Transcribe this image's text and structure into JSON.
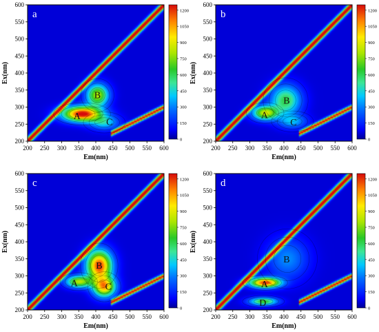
{
  "chart_data": [
    {
      "type": "heatmap",
      "panel_label": "a",
      "xlabel": "Em(nm)",
      "ylabel": "Ex(nm)",
      "xlim": [
        200,
        600
      ],
      "ylim": [
        200,
        600
      ],
      "x_ticks": [
        "200",
        "250",
        "300",
        "350",
        "400",
        "450",
        "500",
        "550",
        "600"
      ],
      "y_ticks": [
        "200",
        "250",
        "300",
        "350",
        "400",
        "450",
        "500",
        "550",
        "600"
      ],
      "colorbar_ticks": [
        "0",
        "150",
        "300",
        "450",
        "600",
        "750",
        "900",
        "1050",
        "1200"
      ],
      "colorbar_range": [
        0,
        1250
      ],
      "peaks": [
        {
          "label": "A",
          "em": 360,
          "ex": 280,
          "intensity": 1250,
          "sem": 38,
          "sex": 15
        },
        {
          "label": "B",
          "em": 405,
          "ex": 335,
          "intensity": 760,
          "sem": 22,
          "sex": 22
        },
        {
          "label": "C",
          "em": 425,
          "ex": 255,
          "intensity": 380,
          "sem": 28,
          "sex": 14
        }
      ],
      "annotations": [
        {
          "text": "A",
          "em": 345,
          "ex": 275
        },
        {
          "text": "B",
          "em": 405,
          "ex": 336
        },
        {
          "text": "C",
          "em": 440,
          "ex": 258
        }
      ]
    },
    {
      "type": "heatmap",
      "panel_label": "b",
      "xlabel": "Em(nm)",
      "ylabel": "Ex(nm)",
      "xlim": [
        200,
        600
      ],
      "ylim": [
        200,
        600
      ],
      "x_ticks": [
        "200",
        "250",
        "300",
        "350",
        "400",
        "450",
        "500",
        "550",
        "600"
      ],
      "y_ticks": [
        "200",
        "250",
        "300",
        "350",
        "400",
        "450",
        "500",
        "550",
        "600"
      ],
      "colorbar_ticks": [
        "0",
        "150",
        "300",
        "450",
        "600",
        "750",
        "900",
        "1050",
        "1200"
      ],
      "colorbar_range": [
        0,
        1250
      ],
      "peaks": [
        {
          "label": "A",
          "em": 345,
          "ex": 283,
          "intensity": 800,
          "sem": 25,
          "sex": 14
        },
        {
          "label": "B",
          "em": 405,
          "ex": 320,
          "intensity": 560,
          "sem": 30,
          "sex": 30
        },
        {
          "label": "C",
          "em": 425,
          "ex": 258,
          "intensity": 300,
          "sem": 28,
          "sex": 14
        }
      ],
      "annotations": [
        {
          "text": "A",
          "em": 343,
          "ex": 278
        },
        {
          "text": "B",
          "em": 408,
          "ex": 320
        },
        {
          "text": "C",
          "em": 428,
          "ex": 257
        }
      ]
    },
    {
      "type": "heatmap",
      "panel_label": "c",
      "xlabel": "Em(nm)",
      "ylabel": "Ex(nm)",
      "xlim": [
        200,
        600
      ],
      "ylim": [
        200,
        600
      ],
      "x_ticks": [
        "200",
        "250",
        "300",
        "350",
        "400",
        "450",
        "500",
        "550",
        "600"
      ],
      "y_ticks": [
        "200",
        "250",
        "300",
        "350",
        "400",
        "450",
        "500",
        "550",
        "600"
      ],
      "colorbar_ticks": [
        "0",
        "150",
        "300",
        "450",
        "600",
        "750",
        "900",
        "1050",
        "1200"
      ],
      "colorbar_range": [
        0,
        1250
      ],
      "peaks": [
        {
          "label": "A",
          "em": 350,
          "ex": 283,
          "intensity": 760,
          "sem": 25,
          "sex": 12
        },
        {
          "label": "B",
          "em": 410,
          "ex": 330,
          "intensity": 1150,
          "sem": 25,
          "sex": 30
        },
        {
          "label": "C",
          "em": 425,
          "ex": 268,
          "intensity": 950,
          "sem": 22,
          "sex": 20
        }
      ],
      "annotations": [
        {
          "text": "A",
          "em": 337,
          "ex": 280
        },
        {
          "text": "B",
          "em": 410,
          "ex": 331
        },
        {
          "text": "C",
          "em": 437,
          "ex": 270
        }
      ]
    },
    {
      "type": "heatmap",
      "panel_label": "d",
      "xlabel": "Em(nm)",
      "ylabel": "Ex(nm)",
      "xlim": [
        200,
        600
      ],
      "ylim": [
        200,
        600
      ],
      "x_ticks": [
        "200",
        "250",
        "300",
        "350",
        "400",
        "450",
        "500",
        "550",
        "600"
      ],
      "y_ticks": [
        "200",
        "250",
        "300",
        "350",
        "400",
        "450",
        "500",
        "550",
        "600"
      ],
      "colorbar_ticks": [
        "0",
        "150",
        "300",
        "450",
        "600",
        "750",
        "900",
        "1050",
        "1200"
      ],
      "colorbar_range": [
        0,
        1250
      ],
      "peaks": [
        {
          "label": "A",
          "em": 345,
          "ex": 280,
          "intensity": 1150,
          "sem": 30,
          "sex": 10
        },
        {
          "label": "B",
          "em": 410,
          "ex": 350,
          "intensity": 260,
          "sem": 40,
          "sex": 40
        },
        {
          "label": "D",
          "em": 340,
          "ex": 225,
          "intensity": 620,
          "sem": 28,
          "sex": 8
        }
      ],
      "annotations": [
        {
          "text": "A",
          "em": 343,
          "ex": 277
        },
        {
          "text": "B",
          "em": 408,
          "ex": 350
        },
        {
          "text": "D",
          "em": 338,
          "ex": 222
        }
      ]
    }
  ]
}
